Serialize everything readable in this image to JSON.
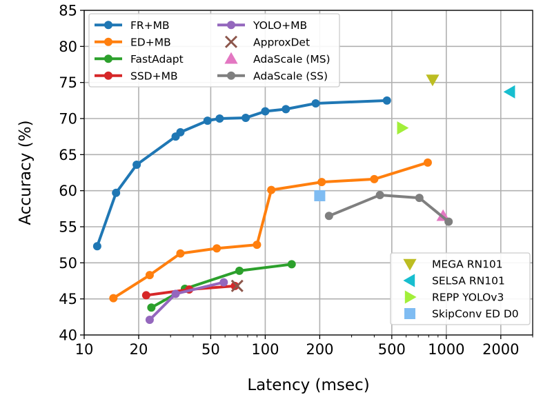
{
  "chart_data": {
    "type": "line",
    "title": "",
    "xlabel": "Latency (msec)",
    "ylabel": "Accuracy (%)",
    "xscale": "log",
    "xlim": [
      10,
      3000
    ],
    "ylim": [
      40,
      85
    ],
    "grid": true,
    "x_ticks": [
      10,
      20,
      50,
      100,
      200,
      500,
      1000,
      2000
    ],
    "x_tick_labels": [
      "10",
      "20",
      "50",
      "100",
      "200",
      "500",
      "1000",
      "2000"
    ],
    "y_ticks": [
      40,
      45,
      50,
      55,
      60,
      65,
      70,
      75,
      80,
      85
    ],
    "y_tick_labels": [
      "40",
      "45",
      "50",
      "55",
      "60",
      "65",
      "70",
      "75",
      "80",
      "85"
    ],
    "legend_left": {
      "placement": "top-left",
      "entries": [
        "FR+MB",
        "ED+MB",
        "FastAdapt",
        "SSD+MB",
        "YOLO+MB",
        "ApproxDet",
        "AdaScale (MS)",
        "AdaScale (SS)"
      ]
    },
    "legend_right": {
      "placement": "bottom-right",
      "entries": [
        "MEGA RN101",
        "SELSA RN101",
        "REPP YOLOv3",
        "SkipConv ED D0"
      ]
    },
    "series": [
      {
        "name": "FR+MB",
        "color": "#1f77b4",
        "marker": "circle",
        "line": true,
        "points": [
          [
            11.8,
            52.3
          ],
          [
            15,
            59.7
          ],
          [
            19.5,
            63.6
          ],
          [
            32,
            67.5
          ],
          [
            34,
            68.1
          ],
          [
            48,
            69.7
          ],
          [
            56,
            70
          ],
          [
            78,
            70.1
          ],
          [
            100,
            71
          ],
          [
            130,
            71.3
          ],
          [
            190,
            72.1
          ],
          [
            470,
            72.5
          ]
        ]
      },
      {
        "name": "ED+MB",
        "color": "#ff7f0e",
        "marker": "circle",
        "line": true,
        "points": [
          [
            14.5,
            45.1
          ],
          [
            23,
            48.3
          ],
          [
            34,
            51.3
          ],
          [
            54,
            52
          ],
          [
            90,
            52.5
          ],
          [
            108,
            60.1
          ],
          [
            205,
            61.2
          ],
          [
            400,
            61.6
          ],
          [
            790,
            63.9
          ]
        ]
      },
      {
        "name": "FastAdapt",
        "color": "#2ca02c",
        "marker": "circle",
        "line": true,
        "points": [
          [
            23.5,
            43.8
          ],
          [
            36,
            46.4
          ],
          [
            72,
            48.9
          ],
          [
            140,
            49.8
          ]
        ]
      },
      {
        "name": "SSD+MB",
        "color": "#d62728",
        "marker": "circle",
        "line": true,
        "points": [
          [
            22,
            45.5
          ],
          [
            38,
            46.3
          ],
          [
            68,
            46.8
          ]
        ]
      },
      {
        "name": "YOLO+MB",
        "color": "#9467bd",
        "marker": "circle",
        "line": true,
        "points": [
          [
            23,
            42.1
          ],
          [
            32,
            45.7
          ],
          [
            59,
            47.3
          ]
        ]
      },
      {
        "name": "ApproxDet",
        "color": "#8c564b",
        "marker": "x",
        "line": false,
        "points": [
          [
            70,
            46.8
          ]
        ]
      },
      {
        "name": "AdaScale (MS)",
        "color": "#e377c2",
        "marker": "triangle-up",
        "line": false,
        "points": [
          [
            960,
            56.5
          ]
        ]
      },
      {
        "name": "AdaScale (SS)",
        "color": "#7f7f7f",
        "marker": "circle",
        "line": true,
        "points": [
          [
            225,
            56.5
          ],
          [
            430,
            59.4
          ],
          [
            710,
            59
          ],
          [
            1030,
            55.7
          ]
        ]
      },
      {
        "name": "MEGA RN101",
        "color": "#bcbd22",
        "marker": "triangle-down",
        "line": false,
        "points": [
          [
            840,
            75.4
          ]
        ]
      },
      {
        "name": "SELSA RN101",
        "color": "#17becf",
        "marker": "triangle-left",
        "line": false,
        "points": [
          [
            2250,
            73.7
          ]
        ]
      },
      {
        "name": "REPP YOLOv3",
        "color": "#a2ef3a",
        "marker": "triangle-right",
        "line": false,
        "points": [
          [
            570,
            68.7
          ]
        ]
      },
      {
        "name": "SkipConv ED D0",
        "color": "#7fbcf2",
        "marker": "square",
        "line": false,
        "points": [
          [
            200,
            59.3
          ]
        ]
      }
    ]
  }
}
